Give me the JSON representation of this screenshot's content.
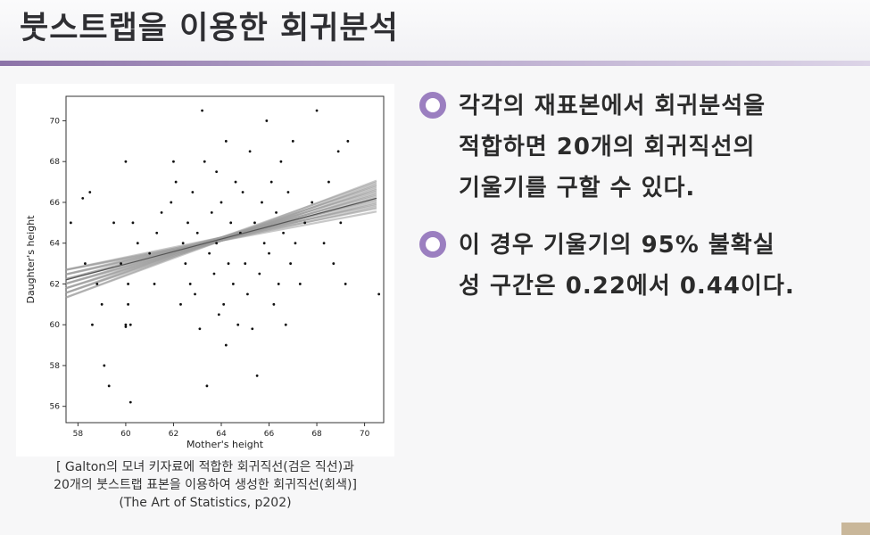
{
  "slide": {
    "title": "붓스트랩을 이용한 회귀분석",
    "bullets": [
      {
        "lines": [
          "각각의 재표본에서 회귀분석을",
          "적합하면 20개의 회귀직선의",
          "기울기를 구할 수 있다."
        ]
      },
      {
        "lines": [
          "이 경우 기울기의 95% 불확실",
          "성 구간은 0.22에서 0.44이다."
        ]
      }
    ],
    "caption": {
      "line1": "[ Galton의 모녀 키자료에 적합한 회귀직선(검은 직선)과",
      "line2": "20개의 붓스트랩 표본을 이용하여 생성한 회귀직선(회색)]",
      "line3": "(The Art of Statistics, p202)"
    }
  },
  "chart_data": {
    "type": "scatter",
    "xlabel": "Mother's height",
    "ylabel": "Daughter's height",
    "xlim": [
      57.5,
      70.8
    ],
    "ylim": [
      55.2,
      71.2
    ],
    "x_ticks": [
      58,
      60,
      62,
      64,
      66,
      68,
      70
    ],
    "y_ticks": [
      56,
      58,
      60,
      62,
      64,
      66,
      68,
      70
    ],
    "fit_line": {
      "slope": 0.33,
      "x": [
        57.5,
        70.5
      ],
      "y": [
        62.2,
        66.2
      ]
    },
    "bootstrap_lines": {
      "count": 20,
      "slope_range": [
        0.22,
        0.44
      ],
      "color": "#9a9a9a"
    },
    "points": [
      [
        57.7,
        65
      ],
      [
        58.2,
        66.2
      ],
      [
        58.5,
        66.5
      ],
      [
        58.3,
        63
      ],
      [
        58.8,
        62
      ],
      [
        59,
        61
      ],
      [
        59.1,
        58
      ],
      [
        59.3,
        57
      ],
      [
        59.5,
        65
      ],
      [
        58.6,
        60
      ],
      [
        59.8,
        63
      ],
      [
        60,
        60
      ],
      [
        60.1,
        62
      ],
      [
        60.1,
        61
      ],
      [
        60,
        59.9
      ],
      [
        60.2,
        60
      ],
      [
        60.3,
        65
      ],
      [
        60.2,
        56.2
      ],
      [
        60,
        68
      ],
      [
        60.5,
        64
      ],
      [
        61,
        63.5
      ],
      [
        61.3,
        64.5
      ],
      [
        61.2,
        62
      ],
      [
        61.5,
        65.5
      ],
      [
        61.9,
        66
      ],
      [
        62,
        68
      ],
      [
        62.1,
        67
      ],
      [
        62.3,
        61
      ],
      [
        62.4,
        64
      ],
      [
        62.5,
        63
      ],
      [
        62.6,
        65
      ],
      [
        62.7,
        62
      ],
      [
        62.8,
        66.5
      ],
      [
        62.9,
        61.5
      ],
      [
        63,
        64.5
      ],
      [
        63.1,
        59.8
      ],
      [
        63.2,
        70.5
      ],
      [
        63.3,
        68
      ],
      [
        63.4,
        57
      ],
      [
        63.5,
        63.5
      ],
      [
        63.6,
        65.5
      ],
      [
        63.7,
        62.5
      ],
      [
        63.8,
        64
      ],
      [
        63.9,
        60.5
      ],
      [
        64,
        66
      ],
      [
        64.1,
        61
      ],
      [
        64.2,
        69
      ],
      [
        64.3,
        63
      ],
      [
        64.4,
        65
      ],
      [
        64.5,
        62
      ],
      [
        64.6,
        67
      ],
      [
        64.7,
        60
      ],
      [
        64.8,
        64.5
      ],
      [
        64.9,
        66.5
      ],
      [
        65,
        63
      ],
      [
        65.1,
        61.5
      ],
      [
        65.2,
        68.5
      ],
      [
        65.3,
        59.8
      ],
      [
        65.4,
        65
      ],
      [
        65.5,
        57.5
      ],
      [
        65.6,
        62.5
      ],
      [
        65.7,
        66
      ],
      [
        65.8,
        64
      ],
      [
        65.9,
        70
      ],
      [
        66,
        63.5
      ],
      [
        66.1,
        67
      ],
      [
        66.2,
        61
      ],
      [
        66.3,
        65.5
      ],
      [
        66.4,
        62
      ],
      [
        66.5,
        68
      ],
      [
        66.6,
        64.5
      ],
      [
        66.7,
        60
      ],
      [
        66.8,
        66.5
      ],
      [
        66.9,
        63
      ],
      [
        67,
        69
      ],
      [
        67.1,
        64
      ],
      [
        67.3,
        62
      ],
      [
        67.5,
        65
      ],
      [
        67.8,
        66
      ],
      [
        68,
        70.5
      ],
      [
        68.3,
        64
      ],
      [
        68.5,
        67
      ],
      [
        68.7,
        63
      ],
      [
        68.9,
        68.5
      ],
      [
        69,
        65
      ],
      [
        69.2,
        62
      ],
      [
        70.6,
        61.5
      ],
      [
        69.3,
        69
      ],
      [
        64.2,
        59
      ],
      [
        63.8,
        67.5
      ]
    ]
  }
}
